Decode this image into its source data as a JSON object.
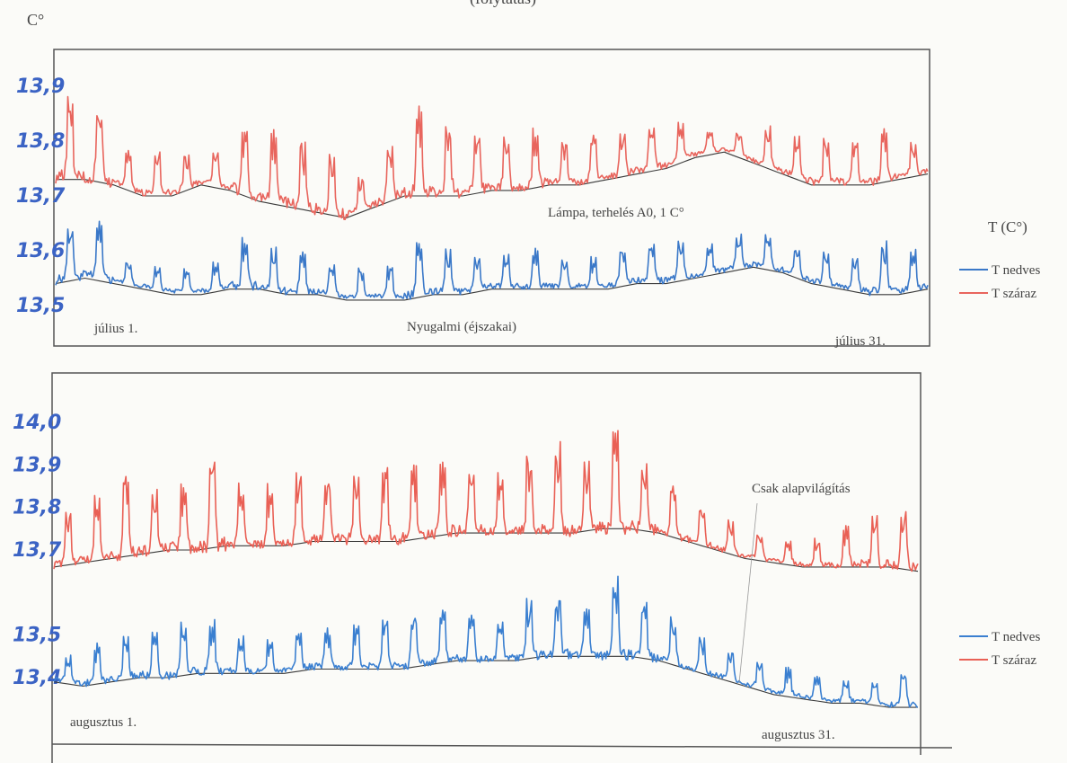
{
  "header": {
    "top_text": "(folytatás)"
  },
  "chart_data": [
    {
      "type": "line",
      "title": "",
      "ylabel": "C°",
      "xlabel": "",
      "ylim": [
        13.45,
        13.95
      ],
      "yticks": [
        {
          "value": 13.9,
          "label": "13,9"
        },
        {
          "value": 13.8,
          "label": "13,8"
        },
        {
          "value": 13.7,
          "label": "13,7"
        },
        {
          "value": 13.6,
          "label": "13,6"
        },
        {
          "value": 13.5,
          "label": "13,5"
        }
      ],
      "x_start_label": "július 1.",
      "x_end_label": "július 31.",
      "annotations": [
        "Lámpa, terhelés A0, 1 C°",
        "Nyugalmi (éjszakai)"
      ],
      "legend_title": "T (C°)",
      "legend_position": "right",
      "series": [
        {
          "name": "T nedves",
          "color": "#3a78c8",
          "x": [
            1,
            2,
            3,
            4,
            5,
            6,
            7,
            8,
            9,
            10,
            11,
            12,
            13,
            14,
            15,
            16,
            17,
            18,
            19,
            20,
            21,
            22,
            23,
            24,
            25,
            26,
            27,
            28,
            29,
            30,
            31
          ],
          "base": [
            13.54,
            13.55,
            13.54,
            13.53,
            13.52,
            13.52,
            13.53,
            13.53,
            13.52,
            13.52,
            13.51,
            13.51,
            13.51,
            13.52,
            13.52,
            13.53,
            13.53,
            13.53,
            13.53,
            13.53,
            13.54,
            13.54,
            13.55,
            13.56,
            13.57,
            13.56,
            13.54,
            13.53,
            13.52,
            13.52,
            13.53
          ],
          "peaks": [
            13.64,
            13.65,
            13.58,
            13.57,
            13.56,
            13.57,
            13.62,
            13.61,
            13.59,
            13.58,
            13.56,
            13.57,
            13.61,
            13.6,
            13.58,
            13.59,
            13.6,
            13.58,
            13.58,
            13.59,
            13.61,
            13.61,
            13.6,
            13.62,
            13.63,
            13.61,
            13.6,
            13.59,
            13.61,
            13.59,
            13.57
          ]
        },
        {
          "name": "T száraz",
          "color": "#e8655d",
          "x": [
            1,
            2,
            3,
            4,
            5,
            6,
            7,
            8,
            9,
            10,
            11,
            12,
            13,
            14,
            15,
            16,
            17,
            18,
            19,
            20,
            21,
            22,
            23,
            24,
            25,
            26,
            27,
            28,
            29,
            30,
            31
          ],
          "base": [
            13.73,
            13.73,
            13.72,
            13.7,
            13.7,
            13.72,
            13.71,
            13.69,
            13.68,
            13.67,
            13.66,
            13.68,
            13.7,
            13.7,
            13.7,
            13.71,
            13.71,
            13.72,
            13.72,
            13.73,
            13.74,
            13.75,
            13.77,
            13.78,
            13.76,
            13.74,
            13.72,
            13.72,
            13.72,
            13.73,
            13.74
          ],
          "peaks": [
            13.88,
            13.86,
            13.79,
            13.78,
            13.76,
            13.78,
            13.83,
            13.82,
            13.8,
            13.78,
            13.72,
            13.78,
            13.85,
            13.82,
            13.8,
            13.8,
            13.81,
            13.79,
            13.8,
            13.81,
            13.82,
            13.82,
            13.81,
            13.82,
            13.83,
            13.82,
            13.8,
            13.79,
            13.81,
            13.79,
            13.78
          ]
        }
      ]
    },
    {
      "type": "line",
      "title": "",
      "ylabel": "",
      "xlabel": "",
      "ylim": [
        13.3,
        14.05
      ],
      "yticks": [
        {
          "value": 14.0,
          "label": "14,0"
        },
        {
          "value": 13.9,
          "label": "13,9"
        },
        {
          "value": 13.8,
          "label": "13,8"
        },
        {
          "value": 13.7,
          "label": "13,7"
        },
        {
          "value": 13.5,
          "label": "13,5"
        },
        {
          "value": 13.4,
          "label": "13,4"
        }
      ],
      "x_start_label": "augusztus 1.",
      "x_end_label": "augusztus 31.",
      "annotations": [
        "Csak alapvilágítás"
      ],
      "legend_position": "right",
      "series": [
        {
          "name": "T nedves",
          "color": "#3a7fd0",
          "x": [
            1,
            2,
            3,
            4,
            5,
            6,
            7,
            8,
            9,
            10,
            11,
            12,
            13,
            14,
            15,
            16,
            17,
            18,
            19,
            20,
            21,
            22,
            23,
            24,
            25,
            26,
            27,
            28,
            29,
            30,
            31
          ],
          "base": [
            13.39,
            13.38,
            13.39,
            13.4,
            13.4,
            13.41,
            13.41,
            13.41,
            13.41,
            13.42,
            13.42,
            13.42,
            13.42,
            13.43,
            13.44,
            13.44,
            13.44,
            13.45,
            13.45,
            13.45,
            13.45,
            13.44,
            13.42,
            13.4,
            13.38,
            13.36,
            13.35,
            13.34,
            13.34,
            13.33,
            13.33
          ],
          "peaks": [
            13.45,
            13.47,
            13.49,
            13.5,
            13.52,
            13.53,
            13.49,
            13.48,
            13.5,
            13.51,
            13.52,
            13.54,
            13.53,
            13.54,
            13.55,
            13.53,
            13.57,
            13.58,
            13.56,
            13.65,
            13.57,
            13.54,
            13.5,
            13.47,
            13.44,
            13.42,
            13.4,
            13.39,
            13.39,
            13.4,
            13.45
          ]
        },
        {
          "name": "T száraz",
          "color": "#e96055",
          "x": [
            1,
            2,
            3,
            4,
            5,
            6,
            7,
            8,
            9,
            10,
            11,
            12,
            13,
            14,
            15,
            16,
            17,
            18,
            19,
            20,
            21,
            22,
            23,
            24,
            25,
            26,
            27,
            28,
            29,
            30,
            31
          ],
          "base": [
            13.66,
            13.67,
            13.68,
            13.69,
            13.7,
            13.7,
            13.71,
            13.71,
            13.71,
            13.72,
            13.72,
            13.72,
            13.72,
            13.73,
            13.74,
            13.74,
            13.74,
            13.74,
            13.74,
            13.75,
            13.75,
            13.74,
            13.72,
            13.7,
            13.68,
            13.67,
            13.66,
            13.66,
            13.66,
            13.66,
            13.65
          ],
          "peaks": [
            13.78,
            13.82,
            13.86,
            13.84,
            13.86,
            13.92,
            13.85,
            13.84,
            13.87,
            13.86,
            13.88,
            13.9,
            13.88,
            13.9,
            13.89,
            13.88,
            13.92,
            13.94,
            13.9,
            14.0,
            13.9,
            13.85,
            13.81,
            13.78,
            13.74,
            13.72,
            13.72,
            13.75,
            13.78,
            13.8,
            13.8
          ]
        }
      ]
    }
  ],
  "colors": {
    "trend": "#3a3a3a",
    "frame": "#555555",
    "hand_ink": "#3b63c4"
  }
}
